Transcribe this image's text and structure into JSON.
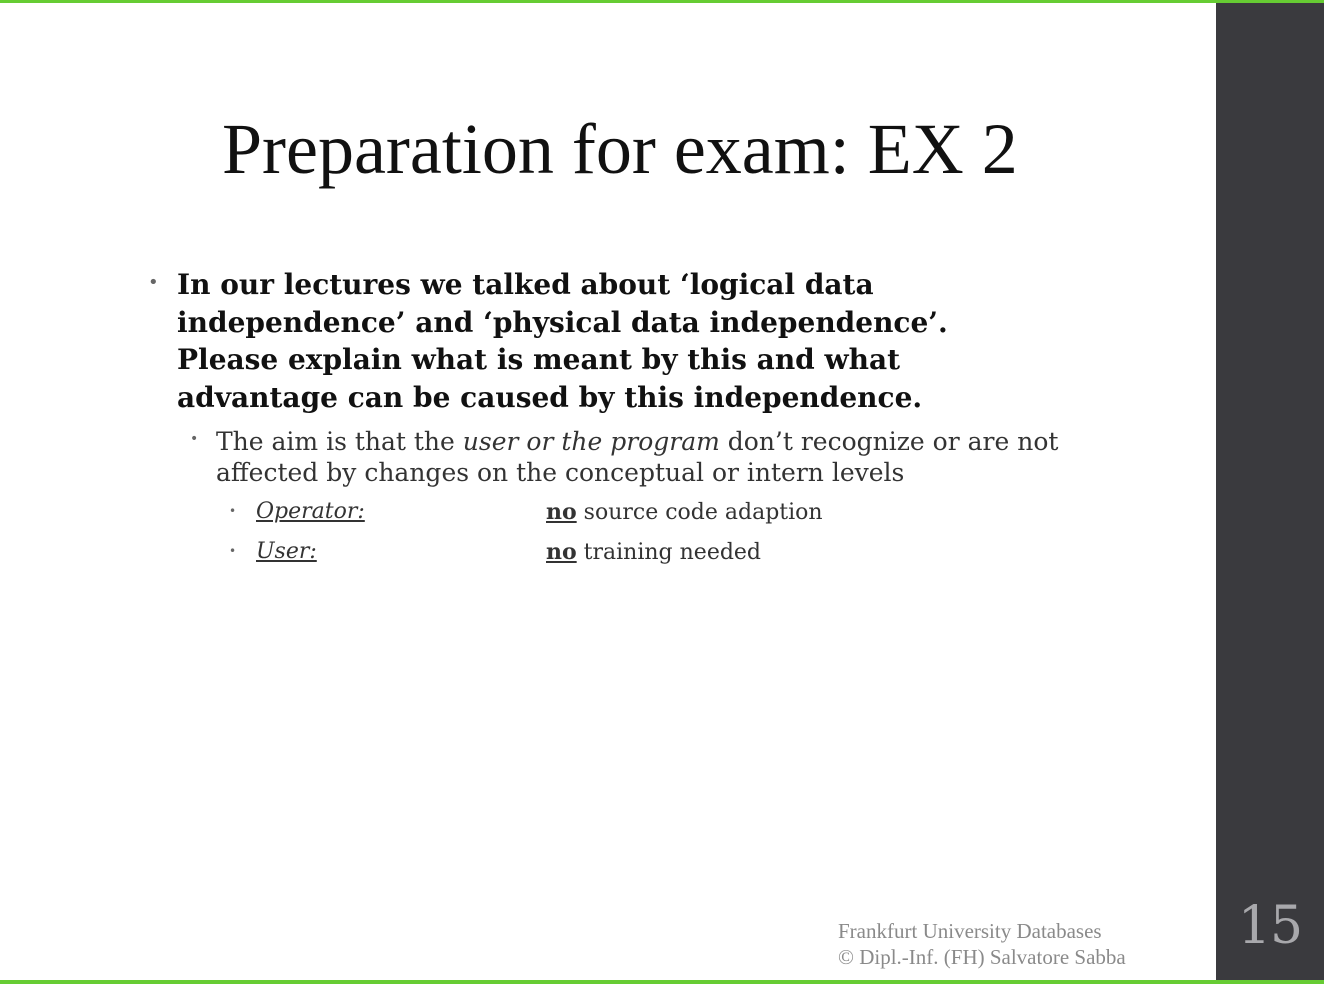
{
  "slide": {
    "title": "Preparation for exam: EX 2",
    "page_number": "15",
    "accent_color": "#66cc33",
    "sidebar_color": "#3a3a3e"
  },
  "content": {
    "question": "In our lectures we talked about ‘logical data independence’ and ‘physical data independence’. Please explain what is meant by this and what advantage can be caused by this independence.",
    "answer": {
      "before": "The aim is that the ",
      "emphasis": "user or the program",
      "after": " don’t recognize or are not affected by changes on the conceptual or intern levels"
    },
    "points": [
      {
        "label": "Operator:",
        "keyword": "no",
        "text": " source code adaption"
      },
      {
        "label": "User:",
        "keyword": "no",
        "text": " training needed"
      }
    ]
  },
  "footer": {
    "line1": "Frankfurt University Databases",
    "line2": "© Dipl.-Inf. (FH) Salvatore Sabba"
  }
}
